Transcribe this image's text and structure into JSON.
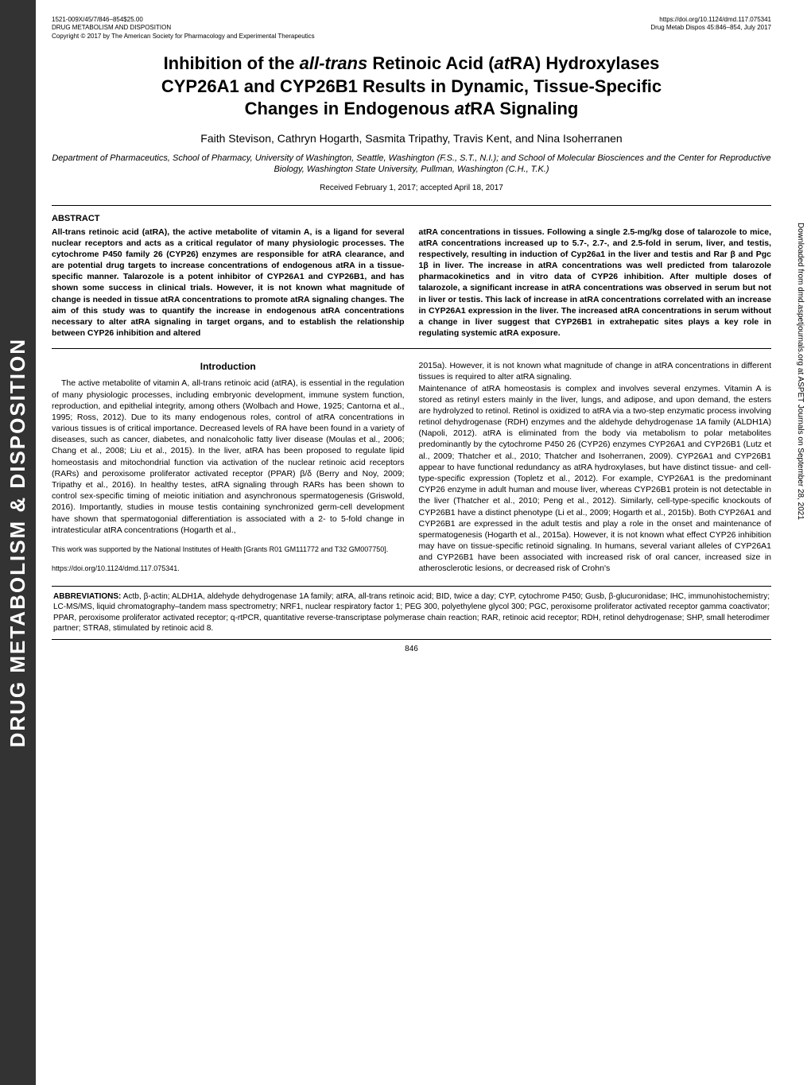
{
  "sidebar": {
    "text": "DRUG METABOLISM & DISPOSITION"
  },
  "vertical_right": "Downloaded from dmd.aspetjournals.org at ASPET Journals on September 28, 2021",
  "header": {
    "meta_left_line1": "1521-009X/45/7/846–854$25.00",
    "meta_left_line2": "DRUG METABOLISM AND DISPOSITION",
    "meta_left_line3": "Copyright © 2017 by The American Society for Pharmacology and Experimental Therapeutics",
    "meta_right_line1": "https://doi.org/10.1124/dmd.117.075341",
    "meta_right_line2": "Drug Metab Dispos 45:846–854, July 2017"
  },
  "title": {
    "line1_pre": "Inhibition of the ",
    "line1_it1": "all-trans",
    "line1_mid": " Retinoic Acid (",
    "line1_it2": "at",
    "line1_post": "RA) Hydroxylases",
    "line2": "CYP26A1 and CYP26B1 Results in Dynamic, Tissue-Specific",
    "line3_pre": "Changes in Endogenous ",
    "line3_it": "at",
    "line3_post": "RA Signaling"
  },
  "authors": "Faith Stevison, Cathryn Hogarth, Sasmita Tripathy, Travis Kent, and Nina Isoherranen",
  "affiliation": "Department of Pharmaceutics, School of Pharmacy, University of Washington, Seattle, Washington (F.S., S.T., N.I.); and School of Molecular Biosciences and the Center for Reproductive Biology, Washington State University, Pullman, Washington (C.H., T.K.)",
  "received": "Received February 1, 2017; accepted April 18, 2017",
  "abstract": {
    "label": "ABSTRACT",
    "left": "All-trans retinoic acid (atRA), the active metabolite of vitamin A, is a ligand for several nuclear receptors and acts as a critical regulator of many physiologic processes. The cytochrome P450 family 26 (CYP26) enzymes are responsible for atRA clearance, and are potential drug targets to increase concentrations of endogenous atRA in a tissue-specific manner. Talarozole is a potent inhibitor of CYP26A1 and CYP26B1, and has shown some success in clinical trials. However, it is not known what magnitude of change is needed in tissue atRA concentrations to promote atRA signaling changes. The aim of this study was to quantify the increase in endogenous atRA concentrations necessary to alter atRA signaling in target organs, and to establish the relationship between CYP26 inhibition and altered",
    "right": "atRA concentrations in tissues. Following a single 2.5-mg/kg dose of talarozole to mice, atRA concentrations increased up to 5.7-, 2.7-, and 2.5-fold in serum, liver, and testis, respectively, resulting in induction of Cyp26a1 in the liver and testis and Rar β and Pgc 1β in liver. The increase in atRA concentrations was well predicted from talarozole pharmacokinetics and in vitro data of CYP26 inhibition. After multiple doses of talarozole, a significant increase in atRA concentrations was observed in serum but not in liver or testis. This lack of increase in atRA concentrations correlated with an increase in CYP26A1 expression in the liver. The increased atRA concentrations in serum without a change in liver suggest that CYP26B1 in extrahepatic sites plays a key role in regulating systemic atRA exposure."
  },
  "body": {
    "intro_heading": "Introduction",
    "left": "The active metabolite of vitamin A, all-trans retinoic acid (atRA), is essential in the regulation of many physiologic processes, including embryonic development, immune system function, reproduction, and epithelial integrity, among others (Wolbach and Howe, 1925; Cantorna et al., 1995; Ross, 2012). Due to its many endogenous roles, control of atRA concentrations in various tissues is of critical importance. Decreased levels of RA have been found in a variety of diseases, such as cancer, diabetes, and nonalcoholic fatty liver disease (Moulas et al., 2006; Chang et al., 2008; Liu et al., 2015). In the liver, atRA has been proposed to regulate lipid homeostasis and mitochondrial function via activation of the nuclear retinoic acid receptors (RARs) and peroxisome proliferator activated receptor (PPAR) β/δ (Berry and Noy, 2009; Tripathy et al., 2016). In healthy testes, atRA signaling through RARs has been shown to control sex-specific timing of meiotic initiation and asynchronous spermatogenesis (Griswold, 2016). Importantly, studies in mouse testis containing synchronized germ-cell development have shown that spermatogonial differentiation is associated with a 2- to 5-fold change in intratesticular atRA concentrations (Hogarth et al.,",
    "footnote1": "This work was supported by the National Institutes of Health [Grants R01 GM111772 and T32 GM007750].",
    "footnote2": "https://doi.org/10.1124/dmd.117.075341.",
    "right": "2015a). However, it is not known what magnitude of change in atRA concentrations in different tissues is required to alter atRA signaling.\nMaintenance of atRA homeostasis is complex and involves several enzymes. Vitamin A is stored as retinyl esters mainly in the liver, lungs, and adipose, and upon demand, the esters are hydrolyzed to retinol. Retinol is oxidized to atRA via a two-step enzymatic process involving retinol dehydrogenase (RDH) enzymes and the aldehyde dehydrogenase 1A family (ALDH1A) (Napoli, 2012). atRA is eliminated from the body via metabolism to polar metabolites predominantly by the cytochrome P450 26 (CYP26) enzymes CYP26A1 and CYP26B1 (Lutz et al., 2009; Thatcher et al., 2010; Thatcher and Isoherranen, 2009). CYP26A1 and CYP26B1 appear to have functional redundancy as atRA hydroxylases, but have distinct tissue- and cell-type-specific expression (Topletz et al., 2012). For example, CYP26A1 is the predominant CYP26 enzyme in adult human and mouse liver, whereas CYP26B1 protein is not detectable in the liver (Thatcher et al., 2010; Peng et al., 2012). Similarly, cell-type-specific knockouts of CYP26B1 have a distinct phenotype (Li et al., 2009; Hogarth et al., 2015b). Both CYP26A1 and CYP26B1 are expressed in the adult testis and play a role in the onset and maintenance of spermatogenesis (Hogarth et al., 2015a). However, it is not known what effect CYP26 inhibition may have on tissue-specific retinoid signaling. In humans, several variant alleles of CYP26A1 and CYP26B1 have been associated with increased risk of oral cancer, increased size in atherosclerotic lesions, or decreased risk of Crohn's"
  },
  "abbreviations": {
    "label": "ABBREVIATIONS:",
    "text": " Actb, β-actin; ALDH1A, aldehyde dehydrogenase 1A family; atRA, all-trans retinoic acid; BID, twice a day; CYP, cytochrome P450; Gusb, β-glucuronidase; IHC, immunohistochemistry; LC-MS/MS, liquid chromatography–tandem mass spectrometry; NRF1, nuclear respiratory factor 1; PEG 300, polyethylene glycol 300; PGC, peroxisome proliferator activated receptor gamma coactivator; PPAR, peroxisome proliferator activated receptor; q-rtPCR, quantitative reverse-transcriptase polymerase chain reaction; RAR, retinoic acid receptor; RDH, retinol dehydrogenase; SHP, small heterodimer partner; STRA8, stimulated by retinoic acid 8."
  },
  "page_number": "846"
}
